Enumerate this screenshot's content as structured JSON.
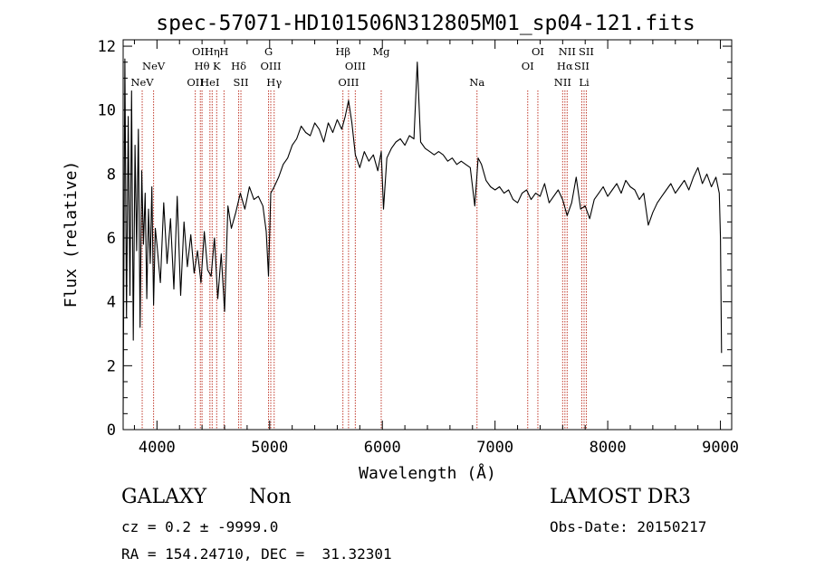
{
  "chart_data": {
    "type": "line",
    "title": "spec-57071-HD101506N312805M01_sp04-121.fits",
    "xlabel": "Wavelength (Å)",
    "ylabel": "Flux (relative)",
    "xlim": [
      3700,
      9100
    ],
    "ylim": [
      0,
      12.2
    ],
    "xticks": [
      4000,
      5000,
      6000,
      7000,
      8000,
      9000
    ],
    "yticks": [
      0,
      2,
      4,
      6,
      8,
      10,
      12
    ],
    "grid": false,
    "line_color": "#000000",
    "marker_color": "#c0392b",
    "series": [
      {
        "x": [
          3700,
          3715,
          3730,
          3745,
          3760,
          3775,
          3790,
          3805,
          3820,
          3835,
          3850,
          3865,
          3880,
          3895,
          3910,
          3925,
          3940,
          3955,
          3970,
          3985,
          4000,
          4030,
          4060,
          4090,
          4120,
          4150,
          4180,
          4210,
          4240,
          4270,
          4300,
          4330,
          4360,
          4390,
          4420,
          4450,
          4480,
          4510,
          4540,
          4570,
          4600,
          4630,
          4660,
          4700,
          4740,
          4780,
          4820,
          4860,
          4900,
          4940,
          4970,
          4990,
          5010,
          5040,
          5080,
          5120,
          5160,
          5200,
          5240,
          5280,
          5320,
          5360,
          5400,
          5440,
          5480,
          5520,
          5560,
          5600,
          5640,
          5670,
          5700,
          5730,
          5760,
          5800,
          5840,
          5880,
          5920,
          5960,
          5990,
          6010,
          6040,
          6080,
          6120,
          6160,
          6200,
          6240,
          6280,
          6310,
          6340,
          6380,
          6420,
          6460,
          6500,
          6540,
          6580,
          6620,
          6660,
          6700,
          6740,
          6780,
          6820,
          6850,
          6880,
          6920,
          6960,
          7000,
          7040,
          7080,
          7120,
          7160,
          7200,
          7240,
          7280,
          7320,
          7360,
          7400,
          7440,
          7480,
          7520,
          7560,
          7600,
          7640,
          7680,
          7720,
          7760,
          7800,
          7840,
          7880,
          7920,
          7960,
          8000,
          8040,
          8080,
          8120,
          8160,
          8200,
          8240,
          8280,
          8320,
          8360,
          8400,
          8440,
          8480,
          8520,
          8560,
          8600,
          8640,
          8680,
          8720,
          8760,
          8800,
          8840,
          8880,
          8920,
          8960,
          8990,
          9000,
          9010
        ],
        "y": [
          0.5,
          11.6,
          3.5,
          9.8,
          4.2,
          10.6,
          2.8,
          8.9,
          5.6,
          9.4,
          3.2,
          8.1,
          5.8,
          7.4,
          4.1,
          6.9,
          5.2,
          7.6,
          3.9,
          6.3,
          5.8,
          4.6,
          7.1,
          5.2,
          6.6,
          4.4,
          7.3,
          4.2,
          6.5,
          5.1,
          6.1,
          4.9,
          5.6,
          4.6,
          6.2,
          5.0,
          4.8,
          6.0,
          4.1,
          5.5,
          3.7,
          7.0,
          6.3,
          6.8,
          7.4,
          6.9,
          7.6,
          7.2,
          7.3,
          7.0,
          6.2,
          4.8,
          7.4,
          7.6,
          7.9,
          8.3,
          8.5,
          8.9,
          9.1,
          9.5,
          9.3,
          9.2,
          9.6,
          9.4,
          9.0,
          9.6,
          9.3,
          9.7,
          9.4,
          9.8,
          10.3,
          9.6,
          8.6,
          8.2,
          8.7,
          8.4,
          8.6,
          8.1,
          8.7,
          6.9,
          8.5,
          8.8,
          9.0,
          9.1,
          8.9,
          9.2,
          9.1,
          11.5,
          9.0,
          8.8,
          8.7,
          8.6,
          8.7,
          8.6,
          8.4,
          8.5,
          8.3,
          8.4,
          8.3,
          8.2,
          7.0,
          8.5,
          8.3,
          7.8,
          7.6,
          7.5,
          7.6,
          7.4,
          7.5,
          7.2,
          7.1,
          7.4,
          7.5,
          7.2,
          7.4,
          7.3,
          7.7,
          7.1,
          7.3,
          7.5,
          7.2,
          6.7,
          7.1,
          7.9,
          6.9,
          7.0,
          6.6,
          7.2,
          7.4,
          7.6,
          7.3,
          7.5,
          7.7,
          7.4,
          7.8,
          7.6,
          7.5,
          7.2,
          7.4,
          6.4,
          6.8,
          7.1,
          7.3,
          7.5,
          7.7,
          7.4,
          7.6,
          7.8,
          7.5,
          7.9,
          8.2,
          7.7,
          8.0,
          7.6,
          7.9,
          7.4,
          6.0,
          2.4
        ]
      }
    ],
    "line_markers": [
      {
        "x": 3869,
        "labels": [
          "NeV"
        ],
        "tier": "low"
      },
      {
        "x": 3970,
        "labels": [
          "NeV"
        ],
        "tier": "mid"
      },
      {
        "x": 4340,
        "labels": [
          "OII"
        ],
        "tier": "low"
      },
      {
        "x": 4385,
        "labels": [
          "OII"
        ],
        "tier": "top"
      },
      {
        "x": 4400,
        "labels": [
          "Hθ"
        ],
        "tier": "mid"
      },
      {
        "x": 4470,
        "labels": [
          "HeI"
        ],
        "tier": "low"
      },
      {
        "x": 4490,
        "labels": [
          "Hη"
        ],
        "tier": "top"
      },
      {
        "x": 4530,
        "labels": [
          "K"
        ],
        "tier": "mid"
      },
      {
        "x": 4595,
        "labels": [
          "H"
        ],
        "tier": "top"
      },
      {
        "x": 4725,
        "labels": [
          "Hδ"
        ],
        "tier": "mid"
      },
      {
        "x": 4745,
        "labels": [
          "SII"
        ],
        "tier": "low"
      },
      {
        "x": 4990,
        "labels": [
          "G"
        ],
        "tier": "top"
      },
      {
        "x": 5010,
        "labels": [
          "OIII"
        ],
        "tier": "mid"
      },
      {
        "x": 5040,
        "labels": [
          "Hγ"
        ],
        "tier": "low"
      },
      {
        "x": 5650,
        "labels": [
          "Hβ"
        ],
        "tier": "top"
      },
      {
        "x": 5700,
        "labels": [
          "OIII"
        ],
        "tier": "low"
      },
      {
        "x": 5760,
        "labels": [
          "OIII"
        ],
        "tier": "mid"
      },
      {
        "x": 5990,
        "labels": [
          "Mg"
        ],
        "tier": "top"
      },
      {
        "x": 6840,
        "labels": [
          "Na"
        ],
        "tier": "low"
      },
      {
        "x": 7290,
        "labels": [
          "OI"
        ],
        "tier": "mid"
      },
      {
        "x": 7380,
        "labels": [
          "OI"
        ],
        "tier": "top"
      },
      {
        "x": 7600,
        "labels": [
          "NII"
        ],
        "tier": "low"
      },
      {
        "x": 7620,
        "labels": [
          "Hα"
        ],
        "tier": "mid"
      },
      {
        "x": 7640,
        "labels": [
          "NII"
        ],
        "tier": "top"
      },
      {
        "x": 7770,
        "labels": [
          "SII"
        ],
        "tier": "mid"
      },
      {
        "x": 7790,
        "labels": [
          "Li"
        ],
        "tier": "low"
      },
      {
        "x": 7810,
        "labels": [
          "SII"
        ],
        "tier": "top"
      }
    ]
  },
  "info": {
    "class_text": "GALAXY",
    "subclass_text": "Non",
    "survey_text": "LAMOST DR3",
    "cz_text": "cz = 0.2 ± -9999.0",
    "obs_date_text": "Obs-Date: 20150217",
    "coords_text": "RA = 154.24710, DEC =  31.32301"
  }
}
